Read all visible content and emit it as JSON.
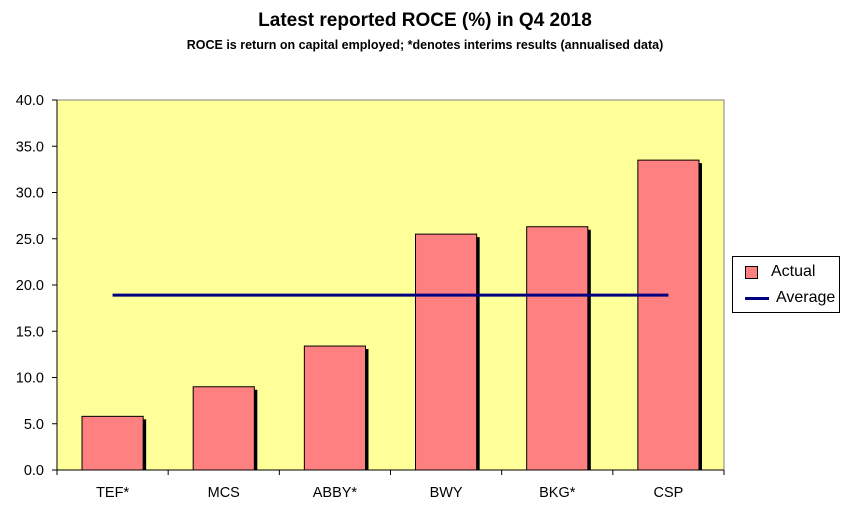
{
  "chart_data": {
    "type": "bar",
    "title": "Latest reported ROCE (%) in Q4 2018",
    "subtitle": "ROCE is return on capital employed; *denotes interims results (annualised data)",
    "categories": [
      "TEF*",
      "MCS",
      "ABBY*",
      "BWY",
      "BKG*",
      "CSP"
    ],
    "series": [
      {
        "name": "Actual",
        "type": "bar",
        "values": [
          5.8,
          9.0,
          13.4,
          25.5,
          26.3,
          33.5
        ],
        "color": "#ff8080"
      },
      {
        "name": "Average",
        "type": "line",
        "values": [
          18.9,
          18.9,
          18.9,
          18.9,
          18.9,
          18.9
        ],
        "color": "#000080"
      }
    ],
    "ylim": [
      0,
      40
    ],
    "yticks": [
      "0.0",
      "5.0",
      "10.0",
      "15.0",
      "20.0",
      "25.0",
      "30.0",
      "35.0",
      "40.0"
    ],
    "xlabel": "",
    "ylabel": "",
    "plot_background": "#ffff99",
    "grid": false,
    "legend_position": "right"
  }
}
